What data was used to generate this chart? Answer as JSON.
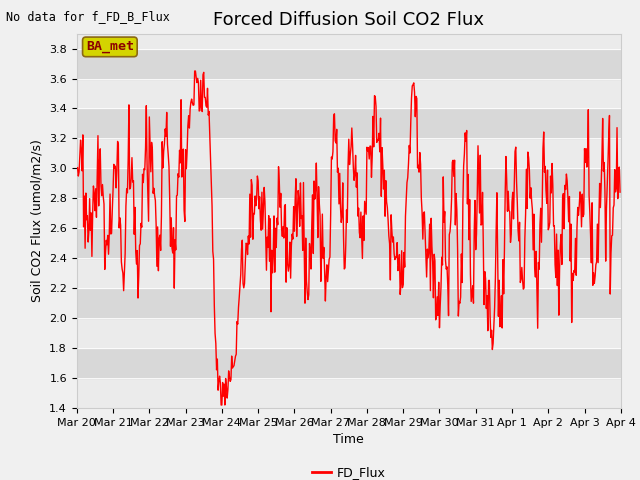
{
  "title": "Forced Diffusion Soil CO2 Flux",
  "no_data_text": "No data for f_FD_B_Flux",
  "ylabel_plain": "Soil CO2 Flux (umol/m2/s)",
  "xlabel": "Time",
  "legend_label": "FD_Flux",
  "ba_label": "BA_met",
  "ylim": [
    1.4,
    3.9
  ],
  "line_color": "#ff0000",
  "line_width": 1.0,
  "title_fontsize": 13,
  "label_fontsize": 9,
  "tick_fontsize": 8,
  "x_tick_labels": [
    "Mar 20",
    "Mar 21",
    "Mar 22",
    "Mar 23",
    "Mar 24",
    "Mar 25",
    "Mar 26",
    "Mar 27",
    "Mar 28",
    "Mar 29",
    "Mar 30",
    "Mar 31",
    "Apr 1",
    "Apr 2",
    "Apr 3",
    "Apr 4"
  ],
  "x_tick_positions": [
    0,
    1,
    2,
    3,
    4,
    5,
    6,
    7,
    8,
    9,
    10,
    11,
    12,
    13,
    14,
    15
  ],
  "y_ticks": [
    1.4,
    1.6,
    1.8,
    2.0,
    2.2,
    2.4,
    2.6,
    2.8,
    3.0,
    3.2,
    3.4,
    3.6,
    3.8
  ],
  "plot_bg": "#e8e8e8",
  "fig_bg": "#f0f0f0",
  "stripe_light": "#ebebeb",
  "stripe_dark": "#d8d8d8"
}
